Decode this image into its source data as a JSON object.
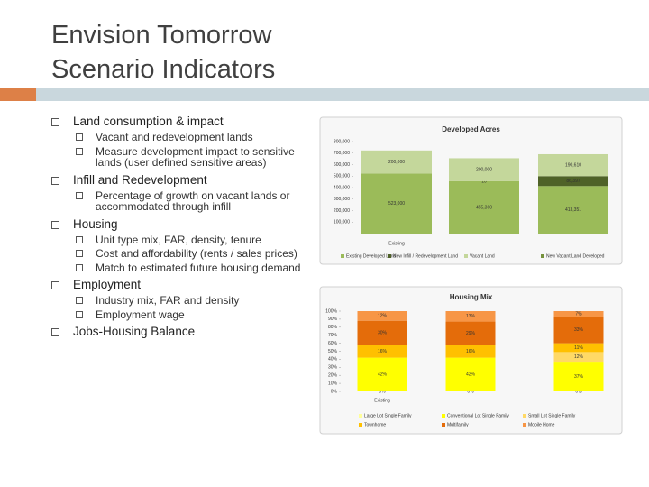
{
  "title": [
    "Envision Tomorrow",
    "Scenario Indicators"
  ],
  "bullets": [
    {
      "text": "Land consumption & impact",
      "sub": [
        "Vacant and redevelopment lands",
        "Measure development impact to sensitive lands (user defined sensitive areas)"
      ]
    },
    {
      "text": "Infill and Redevelopment",
      "sub": [
        "Percentage of growth on vacant lands or accommodated through infill"
      ]
    },
    {
      "text": "Housing",
      "sub": [
        "Unit type mix, FAR, density, tenure",
        "Cost and affordability (rents / sales prices)",
        "Match to estimated future housing demand"
      ]
    },
    {
      "text": "Employment",
      "sub": [
        "Industry mix, FAR and density",
        "Employment wage"
      ]
    },
    {
      "text": "Jobs-Housing Balance",
      "sub": []
    }
  ],
  "charts": [
    {
      "type": "bar",
      "stacked": true,
      "title": "Developed Acres",
      "categories": [
        "Existing",
        null,
        null
      ],
      "ylim": [
        0,
        800000
      ],
      "yticks": [
        {
          "value": 100000,
          "label": "100,000"
        },
        {
          "value": 200000,
          "label": "200,000"
        },
        {
          "value": 300000,
          "label": "300,000"
        },
        {
          "value": 400000,
          "label": "400,000"
        },
        {
          "value": 500000,
          "label": "500,000"
        },
        {
          "value": 600000,
          "label": "600,000"
        },
        {
          "value": 700000,
          "label": "700,000"
        },
        {
          "value": 800000,
          "label": "800,000"
        }
      ],
      "series": [
        {
          "name": "Existing Developed Land",
          "color": "#9bbb59",
          "values": [
            523000,
            455360,
            413351
          ],
          "value_labels": [
            "523,000",
            "455,360",
            "413,351"
          ]
        },
        {
          "name": "New Infill / Redevelopment Land",
          "color": "#4f6228",
          "values": [
            null,
            10,
            86397
          ],
          "value_labels": [
            null,
            "10",
            "86,397"
          ]
        },
        {
          "name": "Vacant Land",
          "color": "#c4d79b",
          "values": [
            200000,
            200000,
            190610
          ],
          "value_labels": [
            "200,000",
            "200,000",
            "190,610"
          ]
        },
        {
          "name": "New Vacant Land Developed",
          "color": "#76923c",
          "values": [
            null,
            null,
            null
          ]
        }
      ]
    },
    {
      "type": "bar",
      "stacked": true,
      "title": "Housing Mix",
      "categories": [
        "Existing",
        null,
        null
      ],
      "ylim": [
        0,
        100
      ],
      "yticks": [
        {
          "value": 0,
          "label": "0%"
        },
        {
          "value": 10,
          "label": "10%"
        },
        {
          "value": 20,
          "label": "20%"
        },
        {
          "value": 30,
          "label": "30%"
        },
        {
          "value": 40,
          "label": "40%"
        },
        {
          "value": 50,
          "label": "50%"
        },
        {
          "value": 60,
          "label": "60%"
        },
        {
          "value": 70,
          "label": "70%"
        },
        {
          "value": 80,
          "label": "80%"
        },
        {
          "value": 90,
          "label": "90%"
        },
        {
          "value": 100,
          "label": "100%"
        }
      ],
      "series": [
        {
          "name": "Large Lot Single Family",
          "color": "#ffff99",
          "values": [
            0,
            0,
            0
          ],
          "value_labels": [
            "0%",
            "0%",
            "0%"
          ]
        },
        {
          "name": "Conventional Lot Single Family",
          "color": "#ffff00",
          "values": [
            42,
            42,
            37
          ],
          "value_labels": [
            "42%",
            "42%",
            "37%"
          ]
        },
        {
          "name": "Small Lot Single Family",
          "color": "#ffd966",
          "values": [
            null,
            null,
            12
          ],
          "value_labels": [
            null,
            null,
            "12%"
          ]
        },
        {
          "name": "Townhome",
          "color": "#ffc000",
          "values": [
            16,
            16,
            11
          ],
          "value_labels": [
            "16%",
            "16%",
            "11%"
          ]
        },
        {
          "name": "Multifamily",
          "color": "#e46c0a",
          "values": [
            30,
            29,
            33
          ],
          "value_labels": [
            "30%",
            "29%",
            "33%"
          ]
        },
        {
          "name": "Mobile Home",
          "color": "#f79646",
          "values": [
            12,
            13,
            7
          ],
          "value_labels": [
            "12%",
            "13%",
            "7%"
          ]
        }
      ]
    }
  ]
}
